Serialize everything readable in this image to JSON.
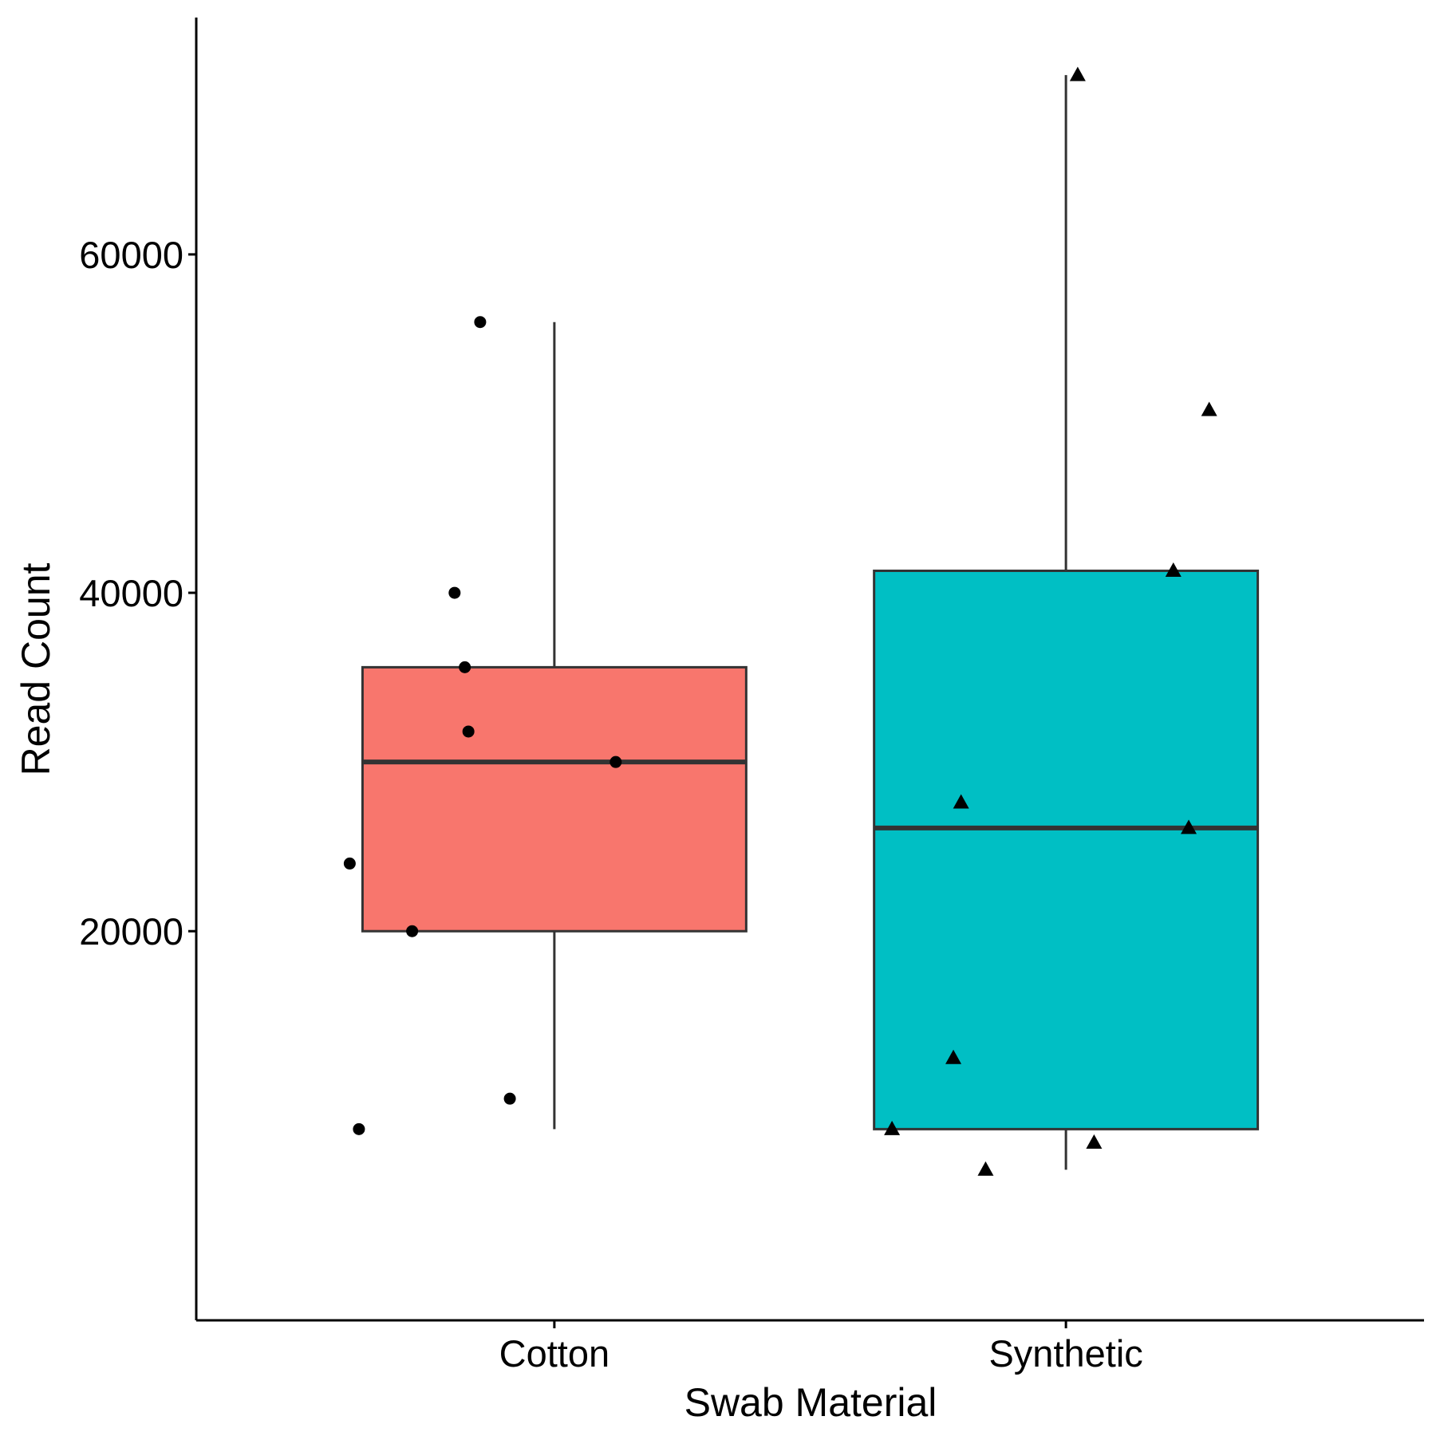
{
  "chart_data": {
    "type": "box",
    "title": "",
    "xlabel": "Swab Material",
    "ylabel": "Read Count",
    "ylim": [
      -3000,
      74000
    ],
    "yticks": [
      20000,
      40000,
      60000
    ],
    "ytick_labels": [
      "20000",
      "40000",
      "60000"
    ],
    "grid": false,
    "legend": "none",
    "categories": [
      "Cotton",
      "Synthetic"
    ],
    "boxes": [
      {
        "category": "Cotton",
        "fill": "#F8766D",
        "min": 8300,
        "q1": 20000,
        "median": 30000,
        "q3": 35600,
        "max": 56000,
        "points": [
          {
            "y": 56000,
            "jitter": -0.145
          },
          {
            "y": 40000,
            "jitter": -0.195
          },
          {
            "y": 35600,
            "jitter": -0.175
          },
          {
            "y": 31800,
            "jitter": -0.168
          },
          {
            "y": 30000,
            "jitter": 0.12
          },
          {
            "y": 24000,
            "jitter": -0.4
          },
          {
            "y": 20000,
            "jitter": -0.278
          },
          {
            "y": 10100,
            "jitter": -0.087
          },
          {
            "y": 8300,
            "jitter": -0.382
          }
        ]
      },
      {
        "category": "Synthetic",
        "fill": "#00BFC4",
        "min": 5900,
        "q1": 8300,
        "median": 26100,
        "q3": 41300,
        "max": 70600,
        "points": [
          {
            "y": 70600,
            "jitter": 0.023
          },
          {
            "y": 50800,
            "jitter": 0.28
          },
          {
            "y": 41300,
            "jitter": 0.21
          },
          {
            "y": 27600,
            "jitter": -0.205
          },
          {
            "y": 26100,
            "jitter": 0.24
          },
          {
            "y": 12500,
            "jitter": -0.22
          },
          {
            "y": 8300,
            "jitter": -0.34
          },
          {
            "y": 7500,
            "jitter": 0.055
          },
          {
            "y": 5900,
            "jitter": -0.157
          }
        ]
      }
    ]
  }
}
